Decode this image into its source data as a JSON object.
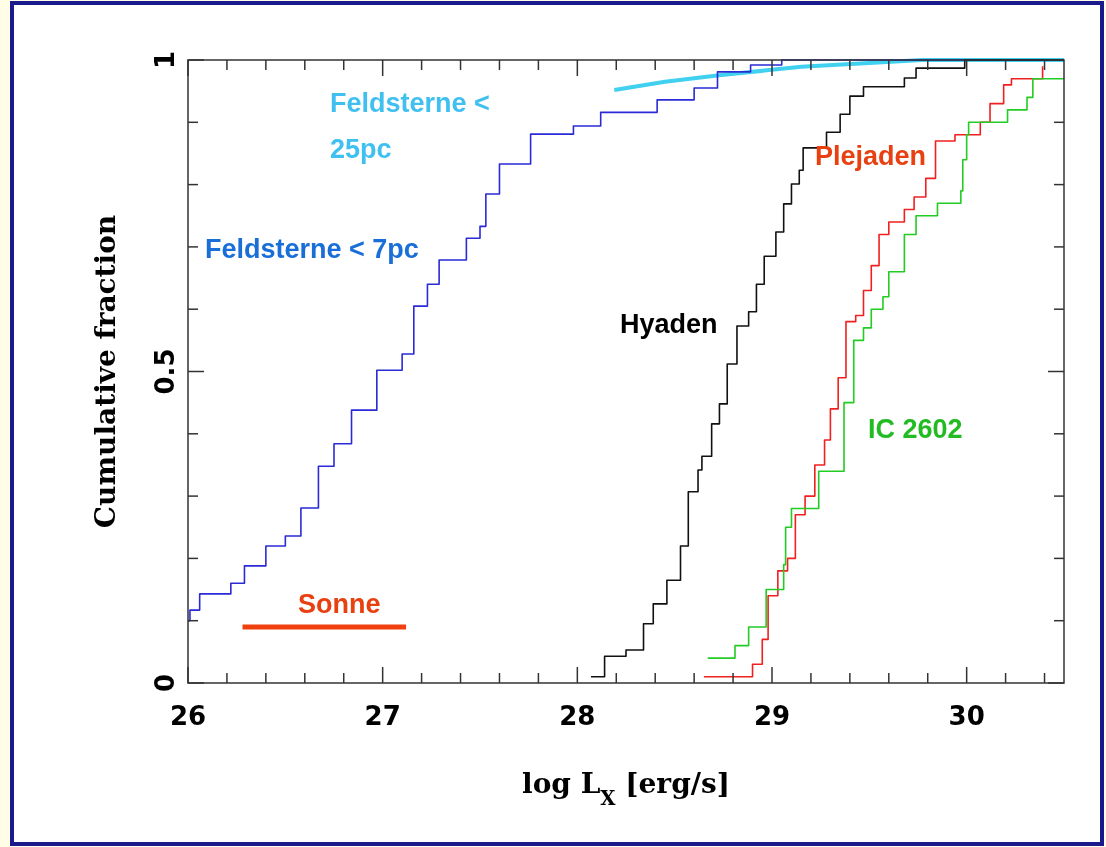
{
  "chart_data": {
    "type": "step",
    "xlabel": "log L$_{X}$ [erg/s]",
    "ylabel": "Cumulative fraction",
    "xlim": [
      26,
      30.5
    ],
    "ylim": [
      0,
      1
    ],
    "xticks": [
      26,
      {
        "value": 26.2,
        "label": null
      },
      {
        "value": 26.4,
        "label": null
      },
      {
        "value": 26.6,
        "label": null
      },
      {
        "value": 26.8,
        "label": null
      },
      27,
      {
        "value": 27.2,
        "label": null
      },
      {
        "value": 27.4,
        "label": null
      },
      {
        "value": 27.6,
        "label": null
      },
      {
        "value": 27.8,
        "label": null
      },
      28,
      {
        "value": 28.2,
        "label": null
      },
      {
        "value": 28.4,
        "label": null
      },
      {
        "value": 28.6,
        "label": null
      },
      {
        "value": 28.8,
        "label": null
      },
      29,
      {
        "value": 29.2,
        "label": null
      },
      {
        "value": 29.4,
        "label": null
      },
      {
        "value": 29.6,
        "label": null
      },
      {
        "value": 29.8,
        "label": null
      },
      30,
      {
        "value": 30.2,
        "label": null
      },
      {
        "value": 30.4,
        "label": null
      }
    ],
    "yticks": [
      0,
      {
        "value": 0.1,
        "label": null
      },
      {
        "value": 0.2,
        "label": null
      },
      {
        "value": 0.3,
        "label": null
      },
      {
        "value": 0.4,
        "label": null
      },
      0.5,
      {
        "value": 0.6,
        "label": null
      },
      {
        "value": 0.7,
        "label": null
      },
      {
        "value": 0.8,
        "label": null
      },
      {
        "value": 0.9,
        "label": null
      },
      1
    ],
    "grid": false,
    "legend": false,
    "marker": "none",
    "series": [
      {
        "name": "Feldsterne < 25pc",
        "type": "line",
        "color": "#40d0f0",
        "x": [
          28.19,
          28.45,
          28.74,
          29.15,
          29.5,
          29.77,
          30.5
        ],
        "values": [
          0.952,
          0.965,
          0.976,
          0.989,
          0.995,
          1.0,
          1.0
        ]
      },
      {
        "name": "Feldsterne < 7pc",
        "color": "#2a2ad6",
        "x": [
          26.0,
          26.01,
          26.06,
          26.22,
          26.29,
          26.4,
          26.5,
          26.58,
          26.67,
          26.75,
          26.84,
          26.97,
          27.1,
          27.16,
          27.23,
          27.29,
          27.43,
          27.5,
          27.53,
          27.6,
          27.76,
          27.98,
          28.12,
          28.41,
          28.6,
          28.72,
          28.89,
          29.05,
          30.5
        ],
        "values": [
          0.1,
          0.117,
          0.143,
          0.16,
          0.188,
          0.22,
          0.236,
          0.281,
          0.348,
          0.384,
          0.438,
          0.502,
          0.528,
          0.605,
          0.64,
          0.679,
          0.714,
          0.733,
          0.785,
          0.833,
          0.881,
          0.894,
          0.916,
          0.936,
          0.955,
          0.981,
          0.992,
          1.0,
          1.0
        ]
      },
      {
        "name": "Hyaden",
        "color": "#111111",
        "x": [
          28.07,
          28.14,
          28.25,
          28.34,
          28.39,
          28.46,
          28.53,
          28.57,
          28.62,
          28.64,
          28.69,
          28.73,
          28.77,
          28.82,
          28.88,
          28.92,
          28.96,
          29.02,
          29.06,
          29.1,
          29.14,
          29.16,
          29.28,
          29.35,
          29.4,
          29.47,
          29.68,
          29.74,
          29.99,
          30.5
        ],
        "values": [
          0.01,
          0.043,
          0.053,
          0.095,
          0.127,
          0.165,
          0.22,
          0.307,
          0.342,
          0.364,
          0.416,
          0.448,
          0.512,
          0.573,
          0.596,
          0.64,
          0.685,
          0.724,
          0.769,
          0.801,
          0.823,
          0.859,
          0.884,
          0.913,
          0.942,
          0.957,
          0.971,
          0.987,
          1.0,
          1.0
        ]
      },
      {
        "name": "Plejaden",
        "color": "#f02020",
        "x": [
          28.65,
          28.76,
          28.9,
          28.95,
          28.98,
          29.03,
          29.08,
          29.12,
          29.17,
          29.22,
          29.27,
          29.3,
          29.34,
          29.38,
          29.43,
          29.47,
          29.51,
          29.55,
          29.6,
          29.68,
          29.73,
          29.79,
          29.84,
          29.94,
          30.07,
          30.12,
          30.19,
          30.23,
          30.39
        ],
        "values": [
          0.01,
          0.01,
          0.03,
          0.07,
          0.14,
          0.18,
          0.2,
          0.27,
          0.3,
          0.35,
          0.39,
          0.44,
          0.49,
          0.58,
          0.59,
          0.63,
          0.67,
          0.72,
          0.74,
          0.76,
          0.78,
          0.81,
          0.87,
          0.88,
          0.9,
          0.93,
          0.96,
          0.97,
          0.99
        ]
      },
      {
        "name": "IC 2602",
        "color": "#22cc22",
        "x": [
          28.67,
          28.81,
          28.88,
          28.97,
          29.06,
          29.07,
          29.1,
          29.24,
          29.37,
          29.42,
          29.47,
          29.51,
          29.57,
          29.6,
          29.68,
          29.74,
          29.85,
          29.97,
          29.98,
          30.0,
          30.01,
          30.21,
          30.31,
          30.34,
          30.5
        ],
        "values": [
          0.04,
          0.06,
          0.09,
          0.15,
          0.19,
          0.25,
          0.28,
          0.34,
          0.45,
          0.55,
          0.57,
          0.6,
          0.62,
          0.66,
          0.72,
          0.75,
          0.77,
          0.79,
          0.84,
          0.88,
          0.9,
          0.92,
          0.94,
          0.97,
          0.97
        ]
      },
      {
        "name": "Sonne",
        "type": "line",
        "color": "#f04010",
        "x": [
          26.28,
          27.12
        ],
        "values": [
          0.09,
          0.09
        ]
      }
    ]
  }
}
